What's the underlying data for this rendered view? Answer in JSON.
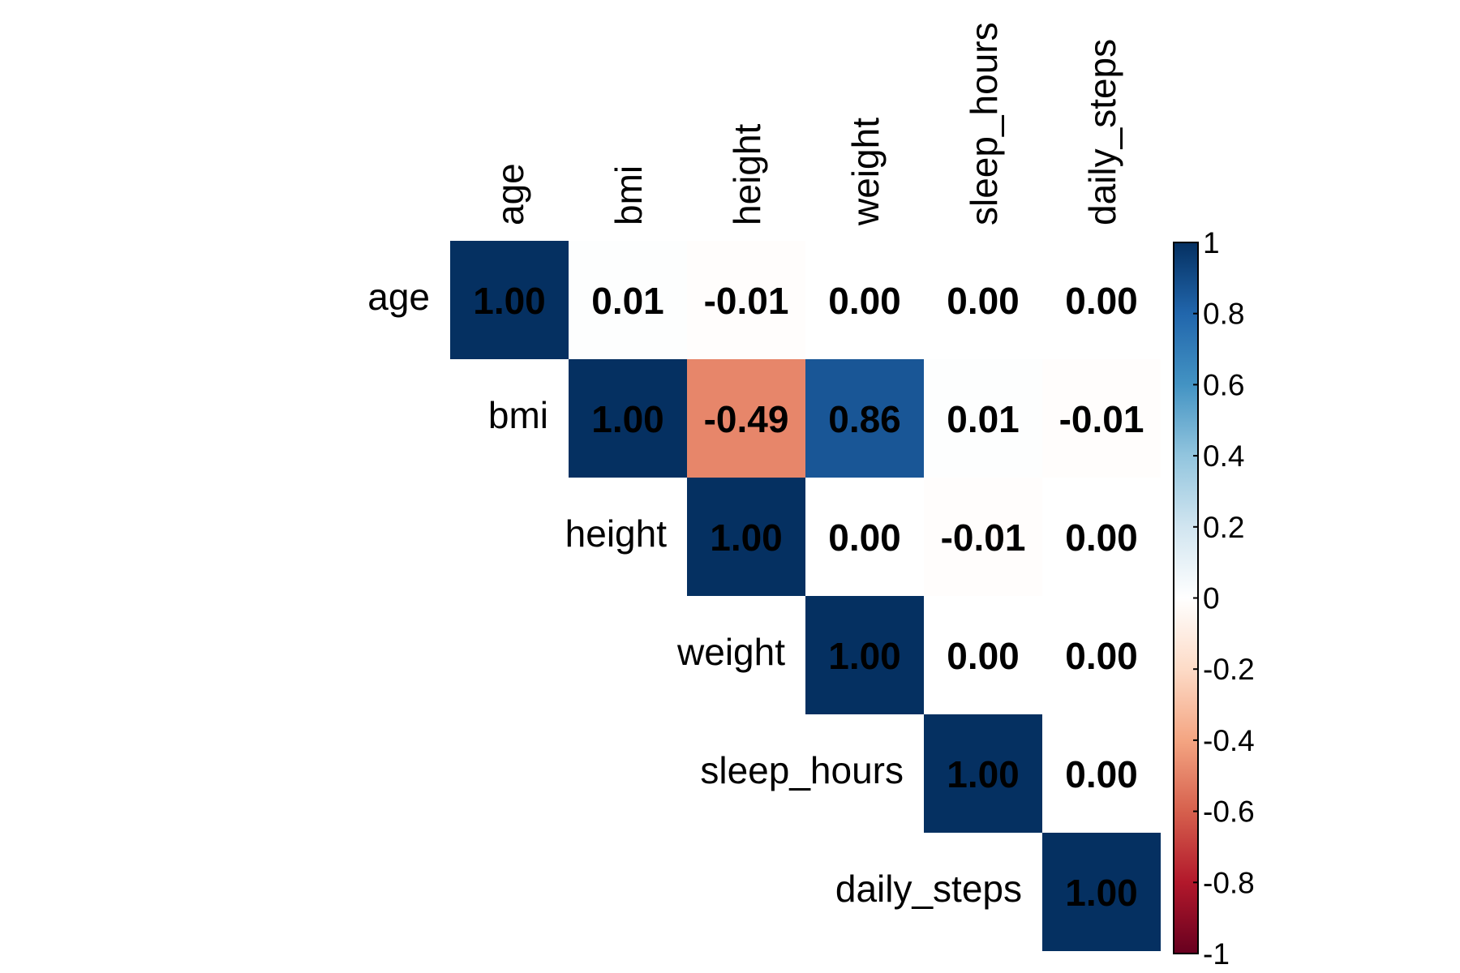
{
  "chart_data": {
    "type": "heatmap",
    "layout": "upper-triangle",
    "variables": [
      "age",
      "bmi",
      "height",
      "weight",
      "sleep_hours",
      "daily_steps"
    ],
    "matrix": [
      [
        1.0,
        0.01,
        -0.01,
        0.0,
        0.0,
        0.0
      ],
      [
        null,
        1.0,
        -0.49,
        0.86,
        0.01,
        -0.01
      ],
      [
        null,
        null,
        1.0,
        0.0,
        -0.01,
        0.0
      ],
      [
        null,
        null,
        null,
        1.0,
        0.0,
        0.0
      ],
      [
        null,
        null,
        null,
        null,
        1.0,
        0.0
      ],
      [
        null,
        null,
        null,
        null,
        null,
        1.0
      ]
    ],
    "labels": [
      [
        "1.00",
        "0.01",
        "-0.01",
        "0.00",
        "0.00",
        "0.00"
      ],
      [
        "",
        "1.00",
        "-0.49",
        "0.86",
        "0.01",
        "-0.01"
      ],
      [
        "",
        "",
        "1.00",
        "0.00",
        "-0.01",
        "0.00"
      ],
      [
        "",
        "",
        "",
        "1.00",
        "0.00",
        "0.00"
      ],
      [
        "",
        "",
        "",
        "",
        "1.00",
        "0.00"
      ],
      [
        "",
        "",
        "",
        "",
        "",
        "1.00"
      ]
    ],
    "colorbar": {
      "range": [
        -1,
        1
      ],
      "ticks": [
        "1",
        "0.8",
        "0.6",
        "0.4",
        "0.2",
        "0",
        "-0.2",
        "-0.4",
        "-0.6",
        "-0.8",
        "-1"
      ],
      "tick_values": [
        1,
        0.8,
        0.6,
        0.4,
        0.2,
        0,
        -0.2,
        -0.4,
        -0.6,
        -0.8,
        -1
      ],
      "palette": [
        "#67001F",
        "#B2182B",
        "#D6604D",
        "#F4A582",
        "#FDDBC7",
        "#FFFFFF",
        "#D1E5F0",
        "#92C5DE",
        "#4393C3",
        "#2166AC",
        "#053061"
      ]
    },
    "colors": {
      "label_text": "#000000",
      "grid": "#ffffff"
    }
  }
}
